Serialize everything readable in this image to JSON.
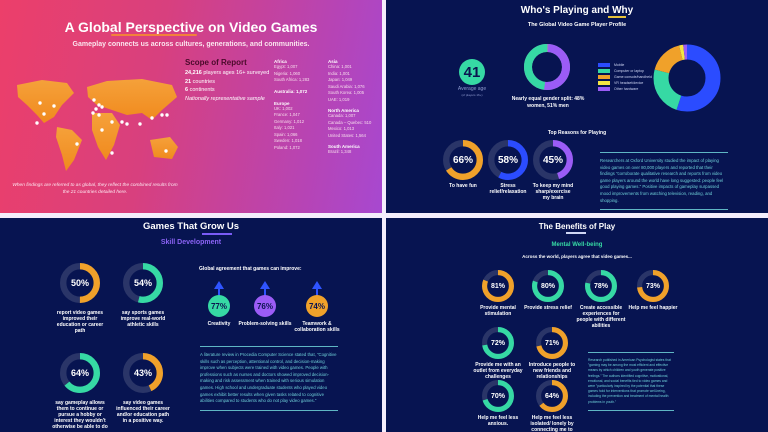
{
  "colors": {
    "orange": "#f0a12a",
    "teal": "#36d9a4",
    "blue": "#2b4cff",
    "purple": "#9b5cf6",
    "track": "#2a3568",
    "yellow": "#e8c23a",
    "navy": "#071451"
  },
  "global": {
    "title": "A Global Perspective on Video Games",
    "subtitle": "Gameplay connects us across cultures, generations, and communities.",
    "scope": {
      "heading": "Scope of Report",
      "players_num": "24,216",
      "players_text": "players ages 16+ surveyed",
      "countries_num": "21",
      "countries_text": "countries",
      "continents_num": "6",
      "continents_text": "continents",
      "sample": "Nationally representative sample"
    },
    "regions": [
      {
        "name": "Africa",
        "items": [
          "Egypt: 1,007",
          "Nigeria: 1,060",
          "South Africa: 1,283"
        ]
      },
      {
        "name": "Australia: 1,072",
        "items": []
      },
      {
        "name": "Europe",
        "items": [
          "UK: 1,002",
          "France: 1,047",
          "Germany: 1,012",
          "Italy: 1,021",
          "Spain: 1,066",
          "Sweden: 1,018",
          "Poland: 1,072"
        ]
      },
      {
        "name": "Asia",
        "items": [
          "China: 1,001",
          "India: 1,001",
          "Japan: 1,049",
          "Saudi Arabia: 1,076",
          "South Korea: 1,005",
          "UAE: 1,019"
        ]
      },
      {
        "name": "North America",
        "items": [
          "Canada: 1,007",
          "Canada – Quebec: 510",
          "Mexico: 1,013",
          "United States: 1,564"
        ]
      },
      {
        "name": "South America",
        "items": [
          "Brazil: 1,348"
        ]
      }
    ],
    "footnote": "When findings are referred to as global, they reflect the combined results from the 21 countries detailed here."
  },
  "who": {
    "title": "Who's Playing and Why",
    "subtitle": "The Global Video Game Player Profile",
    "age": "41",
    "age_label": "Average age",
    "age_note": "(of players 16+)",
    "gender": {
      "women": 48,
      "men": 51,
      "caption": "Nearly equal gender split: 48% women, 51% men"
    },
    "devices": [
      {
        "label": "Mobile",
        "value": 55,
        "color": "#2b4cff"
      },
      {
        "label": "Computer or laptop",
        "value": 24,
        "color": "#36d9a4"
      },
      {
        "label": "Game console/handheld",
        "value": 17,
        "color": "#f0a12a"
      },
      {
        "label": "VR headset/device",
        "value": 2,
        "color": "#f5e642"
      },
      {
        "label": "Other hardware",
        "value": 2,
        "color": "#9b5cf6"
      }
    ],
    "reasons_heading": "Top Reasons for Playing",
    "reasons": [
      {
        "pct": 66,
        "text": "66%",
        "label": "To have fun",
        "color": "#f0a12a"
      },
      {
        "pct": 58,
        "text": "58%",
        "label": "Stress relief/relaxation",
        "color": "#2b4cff"
      },
      {
        "pct": 45,
        "text": "45%",
        "label": "To keep my mind sharp/exercise my brain",
        "color": "#9b5cf6"
      }
    ],
    "paragraph": "Researchers at Oxford University studied the impact of playing video games on over 80,000 players and reported that their findings \"corroborate qualitative research and reports from video game players around the world have long suggested: people feel good playing games.\" Positive impacts of gameplay surpassed mood improvements from watching television, reading, and shopping."
  },
  "grow": {
    "title": "Games That Grow Us",
    "subtitle": "Skill Development",
    "rings": [
      {
        "pct": 50,
        "text": "50%",
        "label": "report video games improved their education or career path",
        "color": "#f0a12a"
      },
      {
        "pct": 54,
        "text": "54%",
        "label": "say sports games improve real-world athletic skills",
        "color": "#36d9a4"
      },
      {
        "pct": 64,
        "text": "64%",
        "label": "say gameplay allows them to continue or pursue a hobby or interest they wouldn't otherwise be able to do",
        "color": "#36d9a4"
      },
      {
        "pct": 43,
        "text": "43%",
        "label": "say video games influenced their career and/or education path in a positive way.",
        "color": "#f0a12a"
      }
    ],
    "agreement_heading": "Global agreement that games can improve:",
    "skills": [
      {
        "text": "77%",
        "label": "Creativity",
        "color": "#36d9a4"
      },
      {
        "text": "76%",
        "label": "Problem-solving skills",
        "color": "#9b5cf6"
      },
      {
        "text": "74%",
        "label": "Teamwork & collaboration skills",
        "color": "#f0a12a"
      }
    ],
    "paragraph": "A literature review in Procedia Computer Science stated that, \"Cognitive skills such as perception, attentional control, and decision-making improve when subjects were trained with video games. People with professions such as nurses and doctors showed improved decision-making and risk assessment when trained with serious simulation games. High school and undergraduate students who played video games exhibit better results when given tasks related to cognitive abilities compared to students who do not play video games.\""
  },
  "benefits": {
    "title": "The Benefits of Play",
    "subtitle": "Mental Well-being",
    "intro": "Across the world, players agree that video games...",
    "rings": [
      {
        "pct": 81,
        "text": "81%",
        "label": "Provide mental stimulation",
        "color": "#f0a12a"
      },
      {
        "pct": 80,
        "text": "80%",
        "label": "Provide stress relief",
        "color": "#36d9a4"
      },
      {
        "pct": 78,
        "text": "78%",
        "label": "Create accessible experiences for people with different abilities",
        "color": "#36d9a4"
      },
      {
        "pct": 73,
        "text": "73%",
        "label": "Help me feel happier",
        "color": "#f0a12a"
      },
      {
        "pct": 72,
        "text": "72%",
        "label": "Provide me with an outlet from everyday challenges",
        "color": "#36d9a4"
      },
      {
        "pct": 71,
        "text": "71%",
        "label": "Introduce people to new friends and relationships",
        "color": "#f0a12a"
      },
      {
        "pct": 70,
        "text": "70%",
        "label": "Help me feel less anxious.",
        "color": "#36d9a4"
      },
      {
        "pct": 64,
        "text": "64%",
        "label": "Help me feel less isolated/ lonely by connecting me to other people",
        "color": "#f0a12a"
      }
    ],
    "paragraph": "Research published in American Psychologist states that \"gaming may be among the most efficient and effective means by which children and youth generate positive feelings.\" The authors identified cognitive, motivational, emotional, and social benefits tied to video games and were \"particularly inspired by the potential that these games hold for interventions that promote well-being, including the prevention and treatment of mental health problems in youth.\""
  }
}
